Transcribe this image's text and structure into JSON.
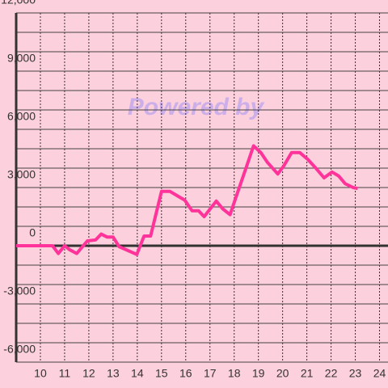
{
  "chart_data": {
    "type": "line",
    "watermark": "Powered by",
    "x": [
      9,
      10,
      10.5,
      10.74,
      11,
      11.2,
      11.5,
      11.94,
      12.28,
      12.51,
      12.75,
      13,
      13.25,
      13.62,
      13.98,
      14.28,
      14.55,
      15,
      15.35,
      15.62,
      15.96,
      16.26,
      16.53,
      16.76,
      17.26,
      17.53,
      17.83,
      18.06,
      18.46,
      18.8,
      19.1,
      19.37,
      19.8,
      20.04,
      20.37,
      20.71,
      21.04,
      21.37,
      21.71,
      22.04,
      22.31,
      22.58,
      22.91,
      23.1
    ],
    "series": [
      {
        "color": "#ff3399",
        "values": [
          0,
          0,
          0,
          -400,
          0,
          -200,
          -400,
          250,
          300,
          600,
          450,
          450,
          -50,
          -250,
          -450,
          500,
          500,
          2800,
          2800,
          2600,
          2350,
          1800,
          1800,
          1500,
          2300,
          1900,
          1600,
          2450,
          3900,
          5150,
          4800,
          4300,
          3700,
          4100,
          4800,
          4800,
          4450,
          4000,
          3500,
          3800,
          3600,
          3200,
          3000,
          2950
        ]
      }
    ],
    "xlim": [
      9,
      24.35
    ],
    "xticks": [
      10,
      11,
      12,
      13,
      14,
      15,
      16,
      17,
      18,
      19,
      20,
      21,
      22,
      23,
      24
    ],
    "ylim": [
      -6000,
      12000
    ],
    "yticks": [
      {
        "value": -6000,
        "label": "-6,000"
      },
      {
        "value": -3000,
        "label": "-3,000"
      },
      0,
      {
        "value": 3000,
        "label": "3,000"
      },
      {
        "value": 6000,
        "label": "6,000"
      },
      {
        "value": 9000,
        "label": "9,000"
      },
      {
        "value": 12000,
        "label": "12,000"
      }
    ],
    "yminor_ticks": [
      -5000,
      -4000,
      -2000,
      -1000,
      1000,
      2000,
      4000,
      5000,
      7000,
      8000,
      10000,
      11000
    ],
    "grid": true
  }
}
